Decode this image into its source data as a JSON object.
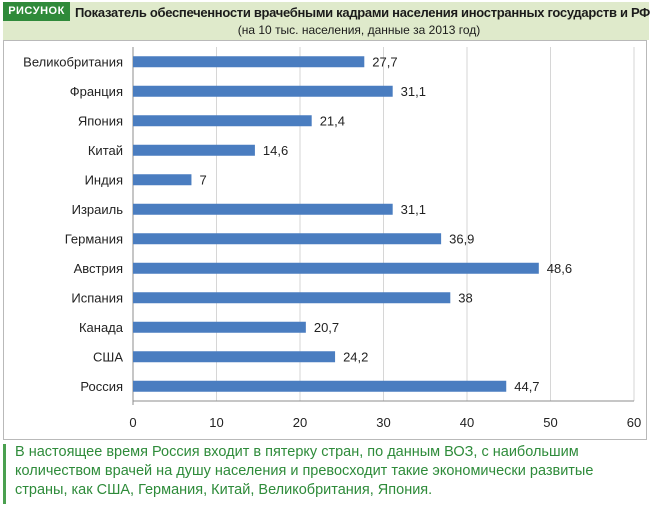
{
  "header": {
    "badge": "РИСУНОК",
    "title": "Показатель обеспеченности врачебными кадрами населения иностранных государств и РФ",
    "subtitle": "(на 10 тыс. населения, данные за 2013 год)"
  },
  "chart_data": {
    "type": "bar",
    "orientation": "horizontal",
    "categories": [
      "Великобритания",
      "Франция",
      "Япония",
      "Китай",
      "Индия",
      "Израиль",
      "Германия",
      "Австрия",
      "Испания",
      "Канада",
      "США",
      "Россия"
    ],
    "values": [
      27.7,
      31.1,
      21.4,
      14.6,
      7,
      31.1,
      36.9,
      48.6,
      38,
      20.7,
      24.2,
      44.7
    ],
    "value_labels": [
      "27,7",
      "31,1",
      "21,4",
      "14,6",
      "7",
      "31,1",
      "36,9",
      "48,6",
      "38",
      "20,7",
      "24,2",
      "44,7"
    ],
    "xlim": [
      0,
      60
    ],
    "x_ticks": [
      0,
      10,
      20,
      30,
      40,
      50,
      60
    ],
    "grid": true,
    "bar_color": "#4a7dc0",
    "grid_color": "#d6d6d6",
    "title": "Показатель обеспеченности врачебными кадрами населения иностранных государств и РФ",
    "subtitle": "(на 10 тыс. населения, данные за 2013 год)"
  },
  "footer": {
    "text": "В настоящее время Россия входит в пятерку стран, по данным ВОЗ, с наибольшим количеством врачей на душу населения и превосходит такие экономически развитые страны, как США, Германия, Китай, Великобритания, Япония."
  },
  "colors": {
    "accent_green": "#2f8a3a",
    "header_bg": "#dfeacb",
    "footer_text": "#2e8b3a"
  }
}
